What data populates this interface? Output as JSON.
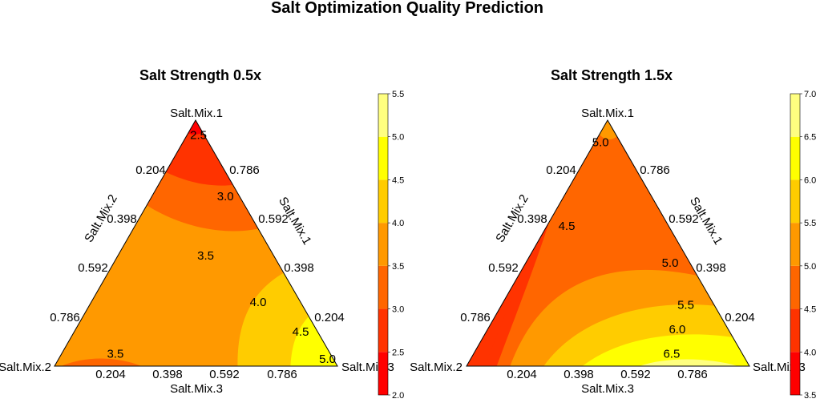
{
  "title": "Salt Optimization Quality Prediction",
  "chart_data": [
    {
      "type": "ternary-contour",
      "title": "Salt Strength 0.5x",
      "axis_labels": {
        "top": "Salt.Mix.1",
        "left": "Salt.Mix.2",
        "right": "Salt.Mix.3"
      },
      "edge_labels": {
        "left": "Salt.Mix.2",
        "right": "Salt.Mix.1",
        "bottom": "Salt.Mix.3"
      },
      "ticks": [
        "0.204",
        "0.398",
        "0.592",
        "0.786"
      ],
      "legend": {
        "levels": [
          "2.0",
          "2.5",
          "3.0",
          "3.5",
          "4.0",
          "4.5",
          "5.0",
          "5.5"
        ],
        "colors": [
          "#ff0000",
          "#ff3300",
          "#ff6600",
          "#ff9900",
          "#ffcc00",
          "#ffff00",
          "#ffff80"
        ]
      },
      "contour_labels": [
        {
          "text": "2.5",
          "a": 0.94,
          "b": 0.02,
          "c": 0.04
        },
        {
          "text": "3.0",
          "a": 0.69,
          "b": 0.05,
          "c": 0.26
        },
        {
          "text": "3.5",
          "a": 0.45,
          "b": 0.24,
          "c": 0.31
        },
        {
          "text": "4.0",
          "a": 0.26,
          "b": 0.15,
          "c": 0.59
        },
        {
          "text": "4.5",
          "a": 0.14,
          "b": 0.06,
          "c": 0.8
        },
        {
          "text": "5.0",
          "a": 0.03,
          "b": 0.02,
          "c": 0.95
        },
        {
          "text": "3.5",
          "a": 0.05,
          "b": 0.76,
          "c": 0.19
        }
      ]
    },
    {
      "type": "ternary-contour",
      "title": "Salt Strength 1.5x",
      "axis_labels": {
        "top": "Salt.Mix.1",
        "left": "Salt.Mix.2",
        "right": "Salt.Mix.3"
      },
      "edge_labels": {
        "left": "Salt.Mix.2",
        "right": "Salt.Mix.1",
        "bottom": "Salt.Mix.3"
      },
      "ticks": [
        "0.204",
        "0.398",
        "0.592",
        "0.786"
      ],
      "legend": {
        "levels": [
          "3.5",
          "4.0",
          "4.5",
          "5.0",
          "5.5",
          "6.0",
          "6.5",
          "7.0"
        ],
        "colors": [
          "#ff0000",
          "#ff3300",
          "#ff6600",
          "#ff9900",
          "#ffcc00",
          "#ffff00",
          "#ffff80"
        ]
      },
      "contour_labels": [
        {
          "text": "5.0",
          "a": 0.91,
          "b": 0.07,
          "c": 0.02
        },
        {
          "text": "4.5",
          "a": 0.57,
          "b": 0.36,
          "c": 0.07
        },
        {
          "text": "5.0",
          "a": 0.42,
          "b": 0.07,
          "c": 0.51
        },
        {
          "text": "5.5",
          "a": 0.25,
          "b": 0.1,
          "c": 0.65
        },
        {
          "text": "6.0",
          "a": 0.15,
          "b": 0.18,
          "c": 0.67
        },
        {
          "text": "6.5",
          "a": 0.05,
          "b": 0.25,
          "c": 0.7
        }
      ]
    }
  ]
}
